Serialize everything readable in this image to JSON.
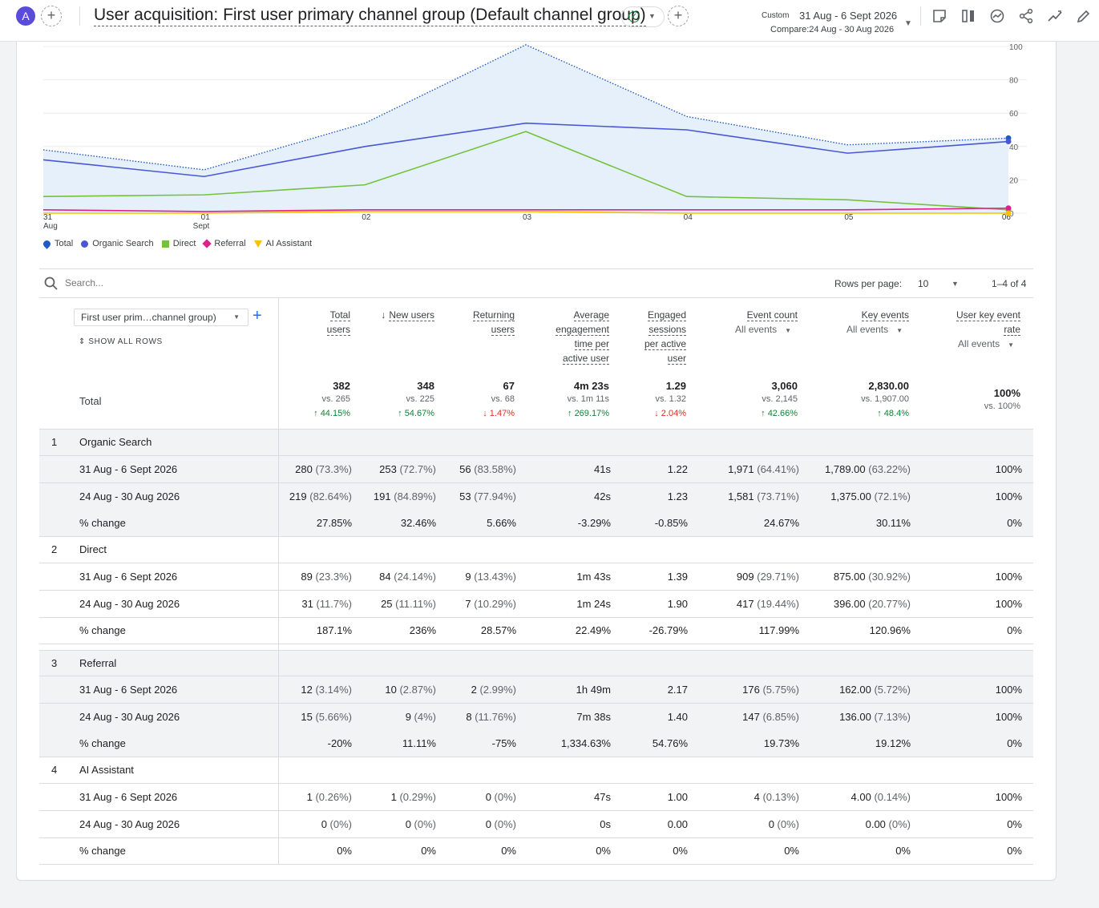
{
  "header": {
    "avatar": "A",
    "title": "User acquisition: First user primary channel group (Default channel group)",
    "date_label": "Custom",
    "date_range": "31 Aug - 6 Sept 2026",
    "compare": "Compare:24 Aug - 30 Aug 2026"
  },
  "colors": {
    "total": "#1f5bc4",
    "organic": "#4a56d6",
    "direct": "#73c23c",
    "referral": "#e0208a",
    "ai": "#f5c200"
  },
  "chart_data": {
    "type": "line",
    "x": [
      "31 Aug",
      "01 Sept",
      "02",
      "03",
      "04",
      "05",
      "06"
    ],
    "x_tick_labels": [
      [
        "31",
        "Aug"
      ],
      [
        "01",
        "Sept"
      ],
      [
        "02",
        ""
      ],
      [
        "03",
        ""
      ],
      [
        "04",
        ""
      ],
      [
        "05",
        ""
      ],
      [
        "06",
        ""
      ]
    ],
    "y_ticks": [
      "0",
      "20",
      "40",
      "60",
      "80",
      "100"
    ],
    "ylim": [
      0,
      100
    ],
    "series": [
      {
        "name": "Total",
        "values": [
          38,
          26,
          54,
          101,
          58,
          41,
          45
        ],
        "area": true
      },
      {
        "name": "Organic Search",
        "values": [
          32,
          22,
          40,
          54,
          50,
          36,
          43
        ]
      },
      {
        "name": "Direct",
        "values": [
          10,
          11,
          17,
          49,
          10,
          8,
          2
        ]
      },
      {
        "name": "Referral",
        "values": [
          2,
          1,
          2,
          2,
          2,
          2,
          3
        ]
      },
      {
        "name": "AI Assistant",
        "values": [
          0,
          0,
          1,
          1,
          0,
          0,
          0
        ]
      }
    ]
  },
  "legend": [
    {
      "label": "Total",
      "shape": "pin",
      "color": "#1f5bc4"
    },
    {
      "label": "Organic Search",
      "shape": "circle",
      "color": "#4a56d6"
    },
    {
      "label": "Direct",
      "shape": "square",
      "color": "#73c23c"
    },
    {
      "label": "Referral",
      "shape": "diamond",
      "color": "#e0208a"
    },
    {
      "label": "AI Assistant",
      "shape": "triangle",
      "color": "#f5c200"
    }
  ],
  "table": {
    "search_placeholder": "Search...",
    "rows_per_page_label": "Rows per page:",
    "rows_per_page": "10",
    "pager": "1–4 of 4",
    "dimension": "First user prim…channel group)",
    "show_all_rows": "SHOW ALL ROWS",
    "total_label": "Total",
    "columns": [
      {
        "lines": [
          "Total",
          "users"
        ],
        "sub": ""
      },
      {
        "lines": [
          "New users"
        ],
        "sub": "",
        "sorted": true
      },
      {
        "lines": [
          "Returning",
          "users"
        ],
        "sub": ""
      },
      {
        "lines": [
          "Average",
          "engagement",
          "time per",
          "active user"
        ],
        "sub": ""
      },
      {
        "lines": [
          "Engaged",
          "sessions",
          "per active",
          "user"
        ],
        "sub": ""
      },
      {
        "lines": [
          "Event count"
        ],
        "sub": "All events"
      },
      {
        "lines": [
          "Key events"
        ],
        "sub": "All events"
      },
      {
        "lines": [
          "User key event",
          "rate"
        ],
        "sub": "All events"
      }
    ],
    "totals": [
      {
        "value": "382",
        "compare": "vs. 265",
        "delta": "44.15%",
        "dir": "up"
      },
      {
        "value": "348",
        "compare": "vs. 225",
        "delta": "54.67%",
        "dir": "up"
      },
      {
        "value": "67",
        "compare": "vs. 68",
        "delta": "1.47%",
        "dir": "down"
      },
      {
        "value": "4m 23s",
        "compare": "vs. 1m 11s",
        "delta": "269.17%",
        "dir": "up"
      },
      {
        "value": "1.29",
        "compare": "vs. 1.32",
        "delta": "2.04%",
        "dir": "down"
      },
      {
        "value": "3,060",
        "compare": "vs. 2,145",
        "delta": "42.66%",
        "dir": "up"
      },
      {
        "value": "2,830.00",
        "compare": "vs. 1,907.00",
        "delta": "48.4%",
        "dir": "up"
      },
      {
        "value": "100%",
        "compare": "vs. 100%",
        "delta": "",
        "dir": ""
      }
    ],
    "groups": [
      {
        "index": "1",
        "name": "Organic Search",
        "shaded": true,
        "rows": [
          {
            "label": "31 Aug - 6 Sept 2026",
            "cells": [
              [
                "280",
                "(73.3%)"
              ],
              [
                "253",
                "(72.7%)"
              ],
              [
                "56",
                "(83.58%)"
              ],
              [
                "41s",
                ""
              ],
              [
                "1.22",
                ""
              ],
              [
                "1,971",
                "(64.41%)"
              ],
              [
                "1,789.00",
                "(63.22%)"
              ],
              [
                "100%",
                ""
              ]
            ]
          },
          {
            "label": "24 Aug - 30 Aug 2026",
            "cells": [
              [
                "219",
                "(82.64%)"
              ],
              [
                "191",
                "(84.89%)"
              ],
              [
                "53",
                "(77.94%)"
              ],
              [
                "42s",
                ""
              ],
              [
                "1.23",
                ""
              ],
              [
                "1,581",
                "(73.71%)"
              ],
              [
                "1,375.00",
                "(72.1%)"
              ],
              [
                "100%",
                ""
              ]
            ]
          },
          {
            "label": "% change",
            "cells": [
              [
                "27.85%",
                ""
              ],
              [
                "32.46%",
                ""
              ],
              [
                "5.66%",
                ""
              ],
              [
                "-3.29%",
                ""
              ],
              [
                "-0.85%",
                ""
              ],
              [
                "24.67%",
                ""
              ],
              [
                "30.11%",
                ""
              ],
              [
                "0%",
                ""
              ]
            ]
          }
        ]
      },
      {
        "index": "2",
        "name": "Direct",
        "shaded": false,
        "rows": [
          {
            "label": "31 Aug - 6 Sept 2026",
            "cells": [
              [
                "89",
                "(23.3%)"
              ],
              [
                "84",
                "(24.14%)"
              ],
              [
                "9",
                "(13.43%)"
              ],
              [
                "1m 43s",
                ""
              ],
              [
                "1.39",
                ""
              ],
              [
                "909",
                "(29.71%)"
              ],
              [
                "875.00",
                "(30.92%)"
              ],
              [
                "100%",
                ""
              ]
            ]
          },
          {
            "label": "24 Aug - 30 Aug 2026",
            "cells": [
              [
                "31",
                "(11.7%)"
              ],
              [
                "25",
                "(11.11%)"
              ],
              [
                "7",
                "(10.29%)"
              ],
              [
                "1m 24s",
                ""
              ],
              [
                "1.90",
                ""
              ],
              [
                "417",
                "(19.44%)"
              ],
              [
                "396.00",
                "(20.77%)"
              ],
              [
                "100%",
                ""
              ]
            ]
          },
          {
            "label": "% change",
            "cells": [
              [
                "187.1%",
                ""
              ],
              [
                "236%",
                ""
              ],
              [
                "28.57%",
                ""
              ],
              [
                "22.49%",
                ""
              ],
              [
                "-26.79%",
                ""
              ],
              [
                "117.99%",
                ""
              ],
              [
                "120.96%",
                ""
              ],
              [
                "0%",
                ""
              ]
            ]
          }
        ]
      },
      {
        "index": "3",
        "name": "Referral",
        "shaded": true,
        "rows": [
          {
            "label": "31 Aug - 6 Sept 2026",
            "cells": [
              [
                "12",
                "(3.14%)"
              ],
              [
                "10",
                "(2.87%)"
              ],
              [
                "2",
                "(2.99%)"
              ],
              [
                "1h 49m",
                ""
              ],
              [
                "2.17",
                ""
              ],
              [
                "176",
                "(5.75%)"
              ],
              [
                "162.00",
                "(5.72%)"
              ],
              [
                "100%",
                ""
              ]
            ]
          },
          {
            "label": "24 Aug - 30 Aug 2026",
            "cells": [
              [
                "15",
                "(5.66%)"
              ],
              [
                "9",
                "(4%)"
              ],
              [
                "8",
                "(11.76%)"
              ],
              [
                "7m 38s",
                ""
              ],
              [
                "1.40",
                ""
              ],
              [
                "147",
                "(6.85%)"
              ],
              [
                "136.00",
                "(7.13%)"
              ],
              [
                "100%",
                ""
              ]
            ]
          },
          {
            "label": "% change",
            "cells": [
              [
                "-20%",
                ""
              ],
              [
                "11.11%",
                ""
              ],
              [
                "-75%",
                ""
              ],
              [
                "1,334.63%",
                ""
              ],
              [
                "54.76%",
                ""
              ],
              [
                "19.73%",
                ""
              ],
              [
                "19.12%",
                ""
              ],
              [
                "0%",
                ""
              ]
            ]
          }
        ]
      },
      {
        "index": "4",
        "name": "AI Assistant",
        "shaded": false,
        "rows": [
          {
            "label": "31 Aug - 6 Sept 2026",
            "cells": [
              [
                "1",
                "(0.26%)"
              ],
              [
                "1",
                "(0.29%)"
              ],
              [
                "0",
                "(0%)"
              ],
              [
                "47s",
                ""
              ],
              [
                "1.00",
                ""
              ],
              [
                "4",
                "(0.13%)"
              ],
              [
                "4.00",
                "(0.14%)"
              ],
              [
                "100%",
                ""
              ]
            ]
          },
          {
            "label": "24 Aug - 30 Aug 2026",
            "cells": [
              [
                "0",
                "(0%)"
              ],
              [
                "0",
                "(0%)"
              ],
              [
                "0",
                "(0%)"
              ],
              [
                "0s",
                ""
              ],
              [
                "0.00",
                ""
              ],
              [
                "0",
                "(0%)"
              ],
              [
                "0.00",
                "(0%)"
              ],
              [
                "0%",
                ""
              ]
            ]
          },
          {
            "label": "% change",
            "cells": [
              [
                "0%",
                ""
              ],
              [
                "0%",
                ""
              ],
              [
                "0%",
                ""
              ],
              [
                "0%",
                ""
              ],
              [
                "0%",
                ""
              ],
              [
                "0%",
                ""
              ],
              [
                "0%",
                ""
              ],
              [
                "0%",
                ""
              ]
            ]
          }
        ]
      }
    ]
  }
}
